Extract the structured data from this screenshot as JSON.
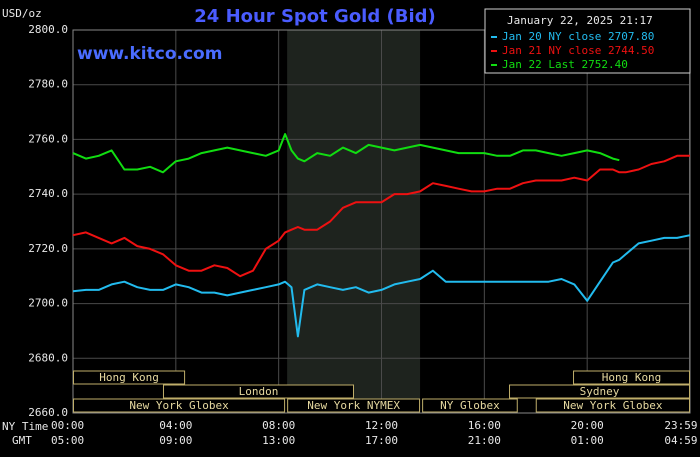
{
  "chart_data": {
    "type": "line",
    "title": "24 Hour Spot Gold (Bid)",
    "watermark": "www.kitco.com",
    "y_label": "USD/oz",
    "timestamp": "January 22, 2025 21:17",
    "x_label": "NY Time",
    "x2_label": "GMT",
    "x": [
      0,
      0.5,
      1,
      1.5,
      2,
      2.5,
      3,
      3.5,
      4,
      4.5,
      5,
      5.5,
      6,
      6.5,
      7,
      7.5,
      8,
      8.25,
      8.5,
      8.75,
      9,
      9.5,
      10,
      10.5,
      11,
      11.5,
      12,
      12.5,
      13,
      13.5,
      14,
      14.5,
      15,
      15.5,
      16,
      16.5,
      17,
      17.5,
      18,
      18.5,
      19,
      19.5,
      20,
      20.5,
      21,
      21.25,
      21.5,
      22,
      22.5,
      23,
      23.5,
      24
    ],
    "series": [
      {
        "name": "Jan 20 NY close 2707.80",
        "color": "#22bbee",
        "values": [
          2704.5,
          2705,
          2705,
          2707,
          2708,
          2706,
          2705,
          2705,
          2707,
          2706,
          2704,
          2704,
          2703,
          2704,
          2705,
          2706,
          2707,
          2708,
          2706,
          2688,
          2705,
          2707,
          2706,
          2705,
          2706,
          2704,
          2705,
          2707,
          2708,
          2709,
          2712,
          2708,
          2708,
          2708,
          2708,
          2708,
          2708,
          2708,
          2708,
          2708,
          2709,
          2707,
          2701,
          2708,
          2715,
          2716,
          2718,
          2722,
          2723,
          2724,
          2724,
          2725
        ]
      },
      {
        "name": "Jan 21 NY close 2744.50",
        "color": "#ee1111",
        "values": [
          2725,
          2726,
          2724,
          2722,
          2724,
          2721,
          2720,
          2718,
          2714,
          2712,
          2712,
          2714,
          2713,
          2710,
          2712,
          2720,
          2723,
          2726,
          2727,
          2728,
          2727,
          2727,
          2730,
          2735,
          2737,
          2737,
          2737,
          2740,
          2740,
          2741,
          2744,
          2743,
          2742,
          2741,
          2741,
          2742,
          2742,
          2744,
          2745,
          2745,
          2745,
          2746,
          2745,
          2749,
          2749,
          2748,
          2748,
          2749,
          2751,
          2752,
          2754,
          2754
        ]
      },
      {
        "name": "Jan 22 Last 2752.40",
        "color": "#11dd11",
        "values": [
          2755,
          2753,
          2754,
          2756,
          2749,
          2749,
          2750,
          2748,
          2752,
          2753,
          2755,
          2756,
          2757,
          2756,
          2755,
          2754,
          2756,
          2762,
          2756,
          2753,
          2752,
          2755,
          2754,
          2757,
          2755,
          2758,
          2757,
          2756,
          2757,
          2758,
          2757,
          2756,
          2755,
          2755,
          2755,
          2754,
          2754,
          2756,
          2756,
          2755,
          2754,
          2755,
          2756,
          2755,
          2753,
          2752.4,
          null,
          null,
          null,
          null,
          null,
          null
        ]
      }
    ],
    "xlim": [
      0,
      24
    ],
    "xticks": [
      {
        "value": 0,
        "label": "00:00"
      },
      {
        "value": 4,
        "label": "04:00"
      },
      {
        "value": 8,
        "label": "08:00"
      },
      {
        "value": 12,
        "label": "12:00"
      },
      {
        "value": 16,
        "label": "16:00"
      },
      {
        "value": 20,
        "label": "20:00"
      },
      {
        "value": 23.98,
        "label": "23:59"
      }
    ],
    "x2_tick_labels": [
      "05:00",
      "09:00",
      "13:00",
      "17:00",
      "21:00",
      "01:00",
      "04:59"
    ],
    "ylim": [
      2660,
      2800
    ],
    "yticks": [
      {
        "value": 2660,
        "label": "2660.0"
      },
      {
        "value": 2680,
        "label": "2680.0"
      },
      {
        "value": 2700,
        "label": "2700.0"
      },
      {
        "value": 2720,
        "label": "2720.0"
      },
      {
        "value": 2740,
        "label": "2740.0"
      },
      {
        "value": 2760,
        "label": "2760.0"
      },
      {
        "value": 2780,
        "label": "2780.0"
      },
      {
        "value": 2800,
        "label": "2800.0"
      }
    ],
    "grid": true,
    "highlight": [
      8.33,
      13.5
    ],
    "sessions": [
      {
        "name": "Hong Kong",
        "start": 0,
        "end": 4.36
      },
      {
        "name": "London",
        "start": 3.5,
        "end": 10.93
      },
      {
        "name": "New York Globex",
        "start": 0,
        "end": 8.25
      },
      {
        "name": "New York NYMEX",
        "start": 8.33,
        "end": 13.5
      },
      {
        "name": "NY Globex",
        "start": 13.58,
        "end": 17.3
      },
      {
        "name": "Sydney",
        "start": 16.96,
        "end": 24
      },
      {
        "name": "Hong Kong",
        "start": 19.45,
        "end": 24
      },
      {
        "name": "New York Globex",
        "start": 18,
        "end": 24
      }
    ]
  }
}
